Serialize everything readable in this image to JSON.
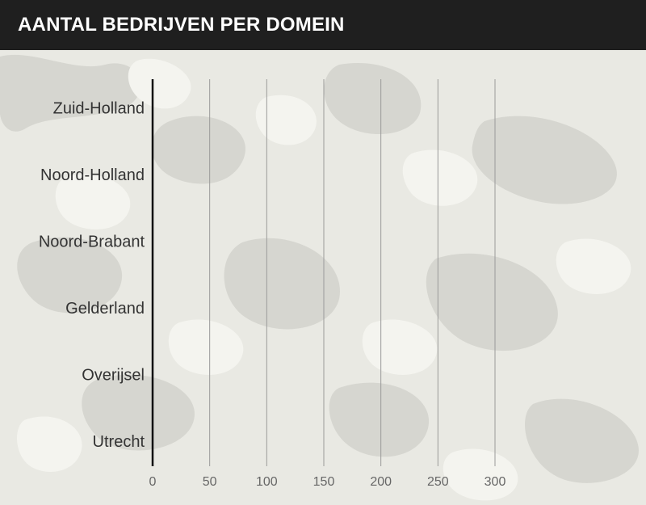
{
  "header": {
    "title": "AANTAL BEDRIJVEN PER DOMEIN"
  },
  "colors": {
    "header_bg": "#1f1f1f",
    "header_text": "#ffffff",
    "gridline": "#9a9a9a",
    "baseline": "#111111",
    "category_text": "#333333",
    "tick_text": "#666666"
  },
  "chart_data": {
    "type": "bar",
    "orientation": "horizontal",
    "title": "AANTAL BEDRIJVEN PER DOMEIN",
    "categories": [
      "Zuid-Holland",
      "Noord-Holland",
      "Noord-Brabant",
      "Gelderland",
      "Overijsel",
      "Utrecht"
    ],
    "values": [
      null,
      null,
      null,
      null,
      null,
      null
    ],
    "xlabel": "",
    "ylabel": "",
    "xlim": [
      0,
      300
    ],
    "xticks": [
      0,
      50,
      100,
      150,
      200,
      250,
      300
    ],
    "xtick_labels": [
      "0",
      "50",
      "100",
      "150",
      "200",
      "250",
      "300"
    ],
    "grid": "vertical",
    "legend": "none"
  }
}
